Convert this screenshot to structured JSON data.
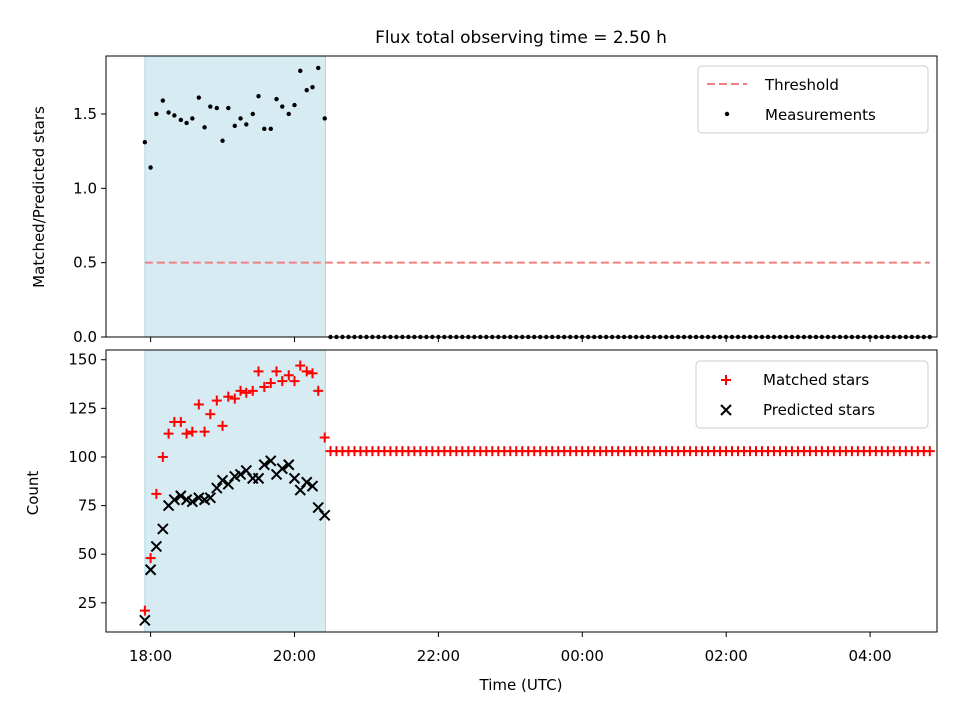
{
  "chart_data": [
    {
      "type": "scatter",
      "title": "Flux total observing time = 2.50 h",
      "xlabel": "",
      "ylabel": "Matched/Predicted stars",
      "xlim": [
        -0.62,
        10.93
      ],
      "ylim": [
        0.0,
        1.89
      ],
      "yticks": [
        0.0,
        0.5,
        1.0,
        1.5
      ],
      "ytick_labels": [
        "0.0",
        "0.5",
        "1.0",
        "1.5"
      ],
      "highlight_span": [
        -0.08,
        2.43
      ],
      "legend_position": "upper right",
      "threshold": {
        "name": "Threshold",
        "value": 0.5,
        "x_range": [
          -0.08,
          10.83
        ],
        "color": "#f08080"
      },
      "series": [
        {
          "name": "Measurements",
          "marker": "dot",
          "color": "#000000",
          "x": [
            -0.08,
            0.0,
            0.08,
            0.17,
            0.25,
            0.33,
            0.42,
            0.5,
            0.58,
            0.67,
            0.75,
            0.83,
            0.92,
            1.0,
            1.08,
            1.17,
            1.25,
            1.33,
            1.42,
            1.5,
            1.58,
            1.67,
            1.75,
            1.83,
            1.92,
            2.0,
            2.08,
            2.17,
            2.25,
            2.33,
            2.42
          ],
          "values": [
            1.31,
            1.14,
            1.5,
            1.59,
            1.51,
            1.49,
            1.46,
            1.44,
            1.47,
            1.61,
            1.41,
            1.55,
            1.54,
            1.32,
            1.54,
            1.42,
            1.47,
            1.43,
            1.5,
            1.62,
            1.4,
            1.4,
            1.6,
            1.55,
            1.5,
            1.56,
            1.79,
            1.66,
            1.68,
            1.81,
            1.47
          ],
          "zero_values_from": 2.5,
          "zero_values_to": 10.83,
          "zero_values_step": 0.0833
        }
      ]
    },
    {
      "type": "scatter",
      "title": "",
      "xlabel": "Time (UTC)",
      "ylabel": "Count",
      "xlim": [
        -0.62,
        10.93
      ],
      "ylim": [
        10,
        155
      ],
      "yticks": [
        25,
        50,
        75,
        100,
        125,
        150
      ],
      "ytick_labels": [
        "25",
        "50",
        "75",
        "100",
        "125",
        "150"
      ],
      "xticks": [
        0,
        2,
        4,
        6,
        8,
        10
      ],
      "xtick_labels": [
        "18:00",
        "20:00",
        "22:00",
        "00:00",
        "02:00",
        "04:00"
      ],
      "highlight_span": [
        -0.08,
        2.43
      ],
      "legend_position": "upper right",
      "series": [
        {
          "name": "Matched stars",
          "marker": "plus",
          "color": "#ff0000",
          "x": [
            -0.08,
            0.0,
            0.08,
            0.17,
            0.25,
            0.33,
            0.42,
            0.5,
            0.58,
            0.67,
            0.75,
            0.83,
            0.92,
            1.0,
            1.08,
            1.17,
            1.25,
            1.33,
            1.42,
            1.5,
            1.58,
            1.67,
            1.75,
            1.83,
            1.92,
            2.0,
            2.08,
            2.17,
            2.25,
            2.33,
            2.42
          ],
          "values": [
            21,
            48,
            81,
            100,
            112,
            118,
            118,
            112,
            113,
            127,
            113,
            122,
            129,
            116,
            131,
            130,
            134,
            133,
            134,
            144,
            136,
            138,
            144,
            139,
            142,
            139,
            147,
            144,
            143,
            134,
            110
          ],
          "constant_value": 103,
          "constant_from": 2.5,
          "constant_to": 10.83,
          "constant_step": 0.0833
        },
        {
          "name": "Predicted stars",
          "marker": "x",
          "color": "#000000",
          "x": [
            -0.08,
            0.0,
            0.08,
            0.17,
            0.25,
            0.33,
            0.42,
            0.5,
            0.58,
            0.67,
            0.75,
            0.83,
            0.92,
            1.0,
            1.08,
            1.17,
            1.25,
            1.33,
            1.42,
            1.5,
            1.58,
            1.67,
            1.75,
            1.83,
            1.92,
            2.0,
            2.08,
            2.17,
            2.25,
            2.33,
            2.42
          ],
          "values": [
            16,
            42,
            54,
            63,
            75,
            78,
            80,
            78,
            77,
            79,
            78,
            79,
            84,
            88,
            86,
            90,
            91,
            93,
            89,
            89,
            96,
            98,
            91,
            94,
            96,
            89,
            83,
            87,
            85,
            74,
            70
          ]
        }
      ]
    }
  ]
}
